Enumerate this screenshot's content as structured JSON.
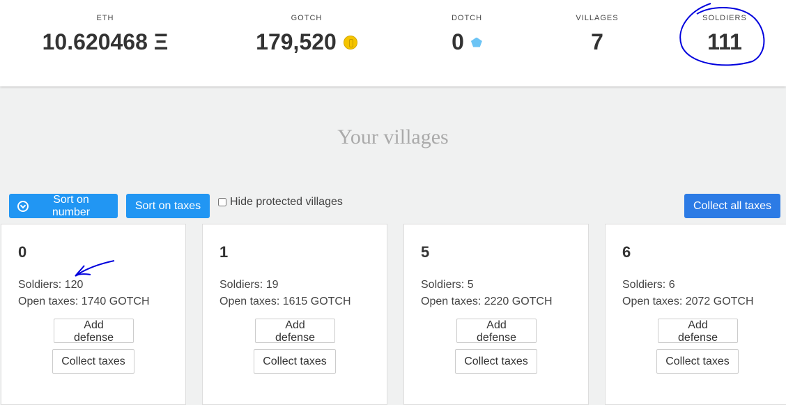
{
  "stats": [
    {
      "label": "ETH",
      "value": "10.620468 Ξ",
      "icon": ""
    },
    {
      "label": "GOTCH",
      "value": "179,520",
      "icon": "gold-coin-icon"
    },
    {
      "label": "DOTCH",
      "value": "0",
      "icon": "blue-gem-icon"
    },
    {
      "label": "VILLAGES",
      "value": "7",
      "icon": ""
    },
    {
      "label": "SOLDIERS",
      "value": "111",
      "icon": ""
    }
  ],
  "title": "Your villages",
  "toolbar": {
    "sort_number": "Sort on number",
    "sort_taxes": "Sort on taxes",
    "hide_protected": "Hide protected villages",
    "collect_all": "Collect all taxes"
  },
  "villages": [
    {
      "number": "0",
      "soldiers": "Soldiers: 120",
      "taxes": "Open taxes: 1740 GOTCH",
      "add_defense": "Add defense",
      "collect": "Collect taxes"
    },
    {
      "number": "1",
      "soldiers": "Soldiers: 19",
      "taxes": "Open taxes: 1615 GOTCH",
      "add_defense": "Add defense",
      "collect": "Collect taxes"
    },
    {
      "number": "5",
      "soldiers": "Soldiers: 5",
      "taxes": "Open taxes: 2220 GOTCH",
      "add_defense": "Add defense",
      "collect": "Collect taxes"
    },
    {
      "number": "6",
      "soldiers": "Soldiers: 6",
      "taxes": "Open taxes: 2072 GOTCH",
      "add_defense": "Add defense",
      "collect": "Collect taxes"
    }
  ],
  "colors": {
    "primary": "#2196f3",
    "annotation": "#0000dd"
  }
}
